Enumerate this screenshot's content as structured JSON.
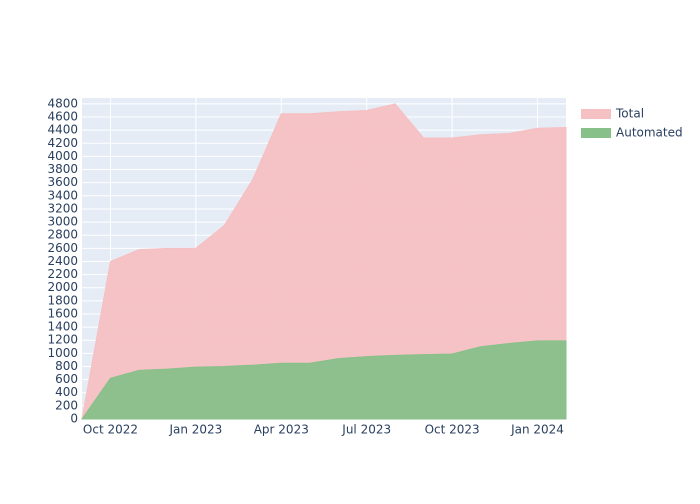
{
  "chart_data": {
    "type": "area",
    "x": [
      "2022-09",
      "2022-10",
      "2022-11",
      "2022-12",
      "2023-01",
      "2023-02",
      "2023-03",
      "2023-04",
      "2023-05",
      "2023-06",
      "2023-07",
      "2023-08",
      "2023-09",
      "2023-10",
      "2023-11",
      "2023-12",
      "2024-01",
      "2024-02"
    ],
    "series": [
      {
        "name": "Total",
        "color": "#f5c0c2",
        "values": [
          0,
          2400,
          2580,
          2600,
          2600,
          2950,
          3650,
          4650,
          4650,
          4680,
          4700,
          4800,
          4280,
          4280,
          4330,
          4350,
          4430,
          4440
        ]
      },
      {
        "name": "Automated",
        "color": "#88c08a",
        "values": [
          0,
          620,
          740,
          760,
          790,
          800,
          820,
          850,
          850,
          920,
          950,
          970,
          980,
          990,
          1100,
          1150,
          1190,
          1190
        ]
      }
    ],
    "xlim": [
      "2022-09",
      "2024-02"
    ],
    "xticks": [
      {
        "value": "2022-10",
        "label": "Oct 2022"
      },
      {
        "value": "2023-01",
        "label": "Jan 2023"
      },
      {
        "value": "2023-04",
        "label": "Apr 2023"
      },
      {
        "value": "2023-07",
        "label": "Jul 2023"
      },
      {
        "value": "2023-10",
        "label": "Oct 2023"
      },
      {
        "value": "2024-01",
        "label": "Jan 2024"
      }
    ],
    "ylim": [
      0,
      4890
    ],
    "yticks": [
      0,
      200,
      400,
      600,
      800,
      1000,
      1200,
      1400,
      1600,
      1800,
      2000,
      2200,
      2400,
      2600,
      2800,
      3000,
      3200,
      3400,
      3600,
      3800,
      4000,
      4200,
      4400,
      4600,
      4800
    ],
    "grid": true,
    "legend": "right"
  }
}
